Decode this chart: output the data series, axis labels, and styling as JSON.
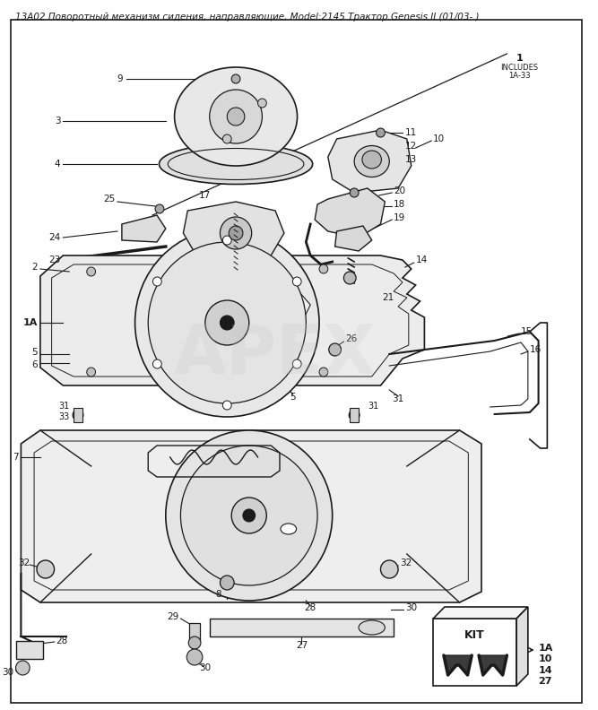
{
  "title": "13A02 Поворотный механизм сидения, направляющие, Model:2145 Трактор Genesis II (01/03- )",
  "title_fontsize": 7.5,
  "bg_color": "#ffffff",
  "dark": "#1a1a1a",
  "fig_width": 6.67,
  "fig_height": 7.92,
  "dpi": 100,
  "watermark": "APEX",
  "kit_label": "KIT",
  "kit_items": "1A\n10\n14\n27"
}
